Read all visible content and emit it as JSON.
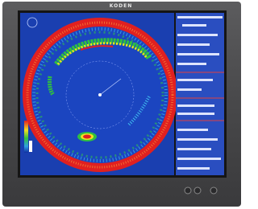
{
  "header": {
    "brand": "KODEN"
  }
}
